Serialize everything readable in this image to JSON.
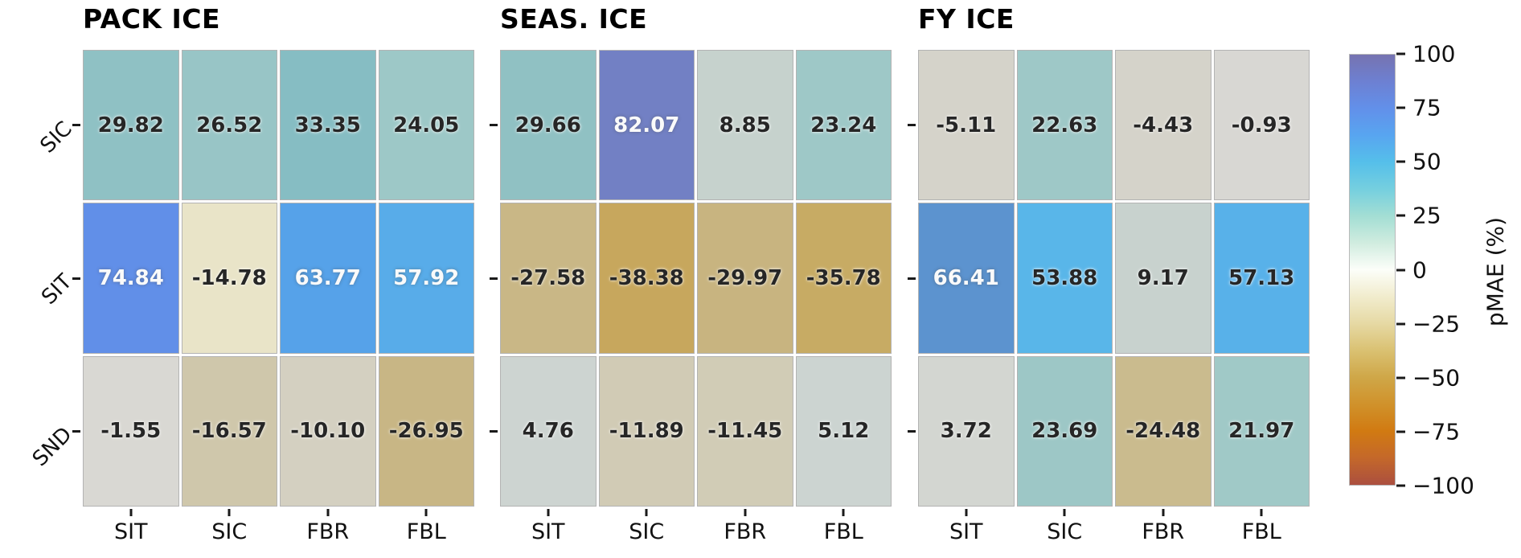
{
  "colors": {
    "background": "#ffffff",
    "dark_text": "#262626",
    "light_text": "#fafafa",
    "tick_color": "#1a1a1a",
    "cell_border": "#b3b3b3"
  },
  "panels": [
    {
      "title": "PACK ICE",
      "row_labels": [
        "SIC",
        "SIT",
        "SND"
      ],
      "col_labels": [
        "SIT",
        "SIC",
        "FBR",
        "FBL"
      ],
      "show_row_labels": true,
      "cells": [
        [
          {
            "v": "29.82",
            "bg": "#8fc1c4"
          },
          {
            "v": "26.52",
            "bg": "#98c5c6"
          },
          {
            "v": "33.35",
            "bg": "#86bdc3"
          },
          {
            "v": "24.05",
            "bg": "#9dc8c7"
          }
        ],
        [
          {
            "v": "74.84",
            "bg": "#618fe8",
            "light": true
          },
          {
            "v": "-14.78",
            "bg": "#e9e4c8"
          },
          {
            "v": "63.77",
            "bg": "#56a2e9",
            "light": true
          },
          {
            "v": "57.92",
            "bg": "#58ace9",
            "light": true
          }
        ],
        [
          {
            "v": "-1.55",
            "bg": "#d9d8d3"
          },
          {
            "v": "-16.57",
            "bg": "#cfc7ab"
          },
          {
            "v": "-10.10",
            "bg": "#d4d0c1"
          },
          {
            "v": "-26.95",
            "bg": "#c8b685"
          }
        ]
      ]
    },
    {
      "title": "SEAS. ICE",
      "row_labels": [
        "SIC",
        "SIT",
        "SND"
      ],
      "col_labels": [
        "SIT",
        "SIC",
        "FBR",
        "FBL"
      ],
      "show_row_labels": false,
      "cells": [
        [
          {
            "v": "29.66",
            "bg": "#90c1c3"
          },
          {
            "v": "82.07",
            "bg": "#7280c4",
            "light": true
          },
          {
            "v": "8.85",
            "bg": "#c6d2cd"
          },
          {
            "v": "23.24",
            "bg": "#9ec8c7"
          }
        ],
        [
          {
            "v": "-27.58",
            "bg": "#c9b786"
          },
          {
            "v": "-38.38",
            "bg": "#c7a75d"
          },
          {
            "v": "-29.97",
            "bg": "#c8b480"
          },
          {
            "v": "-35.78",
            "bg": "#c7ab64"
          }
        ],
        [
          {
            "v": "4.76",
            "bg": "#cdd4d1"
          },
          {
            "v": "-11.89",
            "bg": "#d1cbb5"
          },
          {
            "v": "-11.45",
            "bg": "#d1ccb6"
          },
          {
            "v": "5.12",
            "bg": "#ccd4d1"
          }
        ]
      ]
    },
    {
      "title": "FY ICE",
      "row_labels": [
        "SIC",
        "SIT",
        "SND"
      ],
      "col_labels": [
        "SIT",
        "SIC",
        "FBR",
        "FBL"
      ],
      "show_row_labels": false,
      "cells": [
        [
          {
            "v": "-5.11",
            "bg": "#d5d3ca"
          },
          {
            "v": "22.63",
            "bg": "#9ec8c7"
          },
          {
            "v": "-4.43",
            "bg": "#d5d3ca"
          },
          {
            "v": "-0.93",
            "bg": "#d8d7d3"
          }
        ],
        [
          {
            "v": "66.41",
            "bg": "#5c93cf",
            "light": true
          },
          {
            "v": "53.88",
            "bg": "#59b6e9"
          },
          {
            "v": "9.17",
            "bg": "#c8d2ce"
          },
          {
            "v": "57.13",
            "bg": "#58b1e9"
          }
        ],
        [
          {
            "v": "3.72",
            "bg": "#d3d6d1"
          },
          {
            "v": "23.69",
            "bg": "#9dc7c6"
          },
          {
            "v": "-24.48",
            "bg": "#cabb8e"
          },
          {
            "v": "21.97",
            "bg": "#a0c9c7"
          }
        ]
      ]
    }
  ],
  "colorbar": {
    "label": "pMAE (%)",
    "ticks": [
      "100",
      "75",
      "50",
      "25",
      "0",
      "−25",
      "−50",
      "−75",
      "−100"
    ],
    "gradient": [
      "#7673b0",
      "#6d80d2",
      "#6290ea",
      "#58a5f0",
      "#55bfea",
      "#75cfdf",
      "#a3ded4",
      "#d0ecdf",
      "#fcfef9",
      "#f1eccd",
      "#e6d9a4",
      "#dac172",
      "#cfa748",
      "#d0922b",
      "#d17a12",
      "#c4682a",
      "#ab4f3f"
    ]
  },
  "chart_data": {
    "type": "heatmap",
    "title": "",
    "colorbar_label": "pMAE (%)",
    "color_range": [
      -100,
      100
    ],
    "colorbar_ticks": [
      100,
      75,
      50,
      25,
      0,
      -25,
      -50,
      -75,
      -100
    ],
    "x_categories": [
      "SIT",
      "SIC",
      "FBR",
      "FBL"
    ],
    "y_categories": [
      "SIC",
      "SIT",
      "SND"
    ],
    "panels": [
      {
        "title": "PACK ICE",
        "values": [
          [
            29.82,
            26.52,
            33.35,
            24.05
          ],
          [
            74.84,
            -14.78,
            63.77,
            57.92
          ],
          [
            -1.55,
            -16.57,
            -10.1,
            -26.95
          ]
        ]
      },
      {
        "title": "SEAS. ICE",
        "values": [
          [
            29.66,
            82.07,
            8.85,
            23.24
          ],
          [
            -27.58,
            -38.38,
            -29.97,
            -35.78
          ],
          [
            4.76,
            -11.89,
            -11.45,
            5.12
          ]
        ]
      },
      {
        "title": "FY ICE",
        "values": [
          [
            -5.11,
            22.63,
            -4.43,
            -0.93
          ],
          [
            66.41,
            53.88,
            9.17,
            57.13
          ],
          [
            3.72,
            23.69,
            -24.48,
            21.97
          ]
        ]
      }
    ]
  }
}
